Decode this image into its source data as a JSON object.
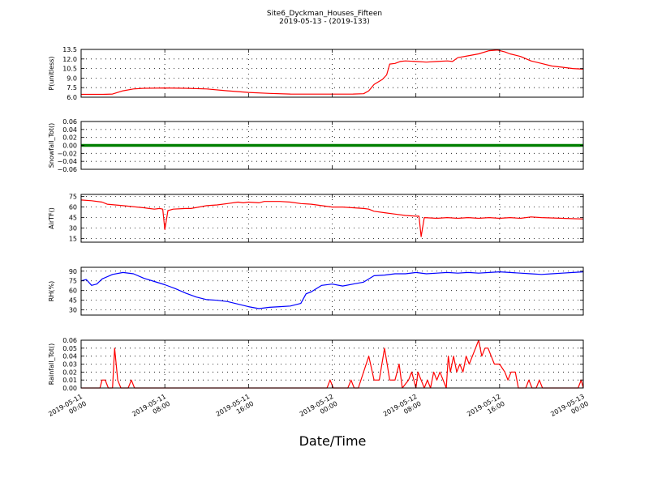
{
  "figure": {
    "title_line1": "Site6_Dyckman_Houses_Fifteen",
    "title_line2": "2019-05-13 - (2019-133)",
    "xlabel": "Date/Time",
    "x_ticks": [
      {
        "t": 0,
        "line1": "2019-05-11",
        "line2": "00:00"
      },
      {
        "t": 8,
        "line1": "2019-05-11",
        "line2": "08:00"
      },
      {
        "t": 16,
        "line1": "2019-05-11",
        "line2": "16:00"
      },
      {
        "t": 24,
        "line1": "2019-05-12",
        "line2": "00:00"
      },
      {
        "t": 32,
        "line1": "2019-05-12",
        "line2": "08:00"
      },
      {
        "t": 40,
        "line1": "2019-05-12",
        "line2": "16:00"
      },
      {
        "t": 48,
        "line1": "2019-05-13",
        "line2": "00:00"
      }
    ],
    "x_range_hours": [
      0,
      48
    ]
  },
  "chart_data": [
    {
      "type": "line",
      "ylabel": "P(unitless)",
      "color": "#ff0000",
      "ylim": [
        6.0,
        13.5
      ],
      "yticks": [
        6.0,
        7.5,
        9.0,
        10.5,
        12.0,
        13.5
      ],
      "ytick_labels": [
        "6.0",
        "7.5",
        "9.0",
        "10.5",
        "12.0",
        "13.5"
      ],
      "grid": true,
      "points": [
        [
          0,
          6.45
        ],
        [
          2,
          6.45
        ],
        [
          3,
          6.5
        ],
        [
          4,
          7.0
        ],
        [
          5,
          7.3
        ],
        [
          6,
          7.4
        ],
        [
          8,
          7.45
        ],
        [
          10,
          7.4
        ],
        [
          12,
          7.3
        ],
        [
          14,
          7.0
        ],
        [
          16,
          6.75
        ],
        [
          18,
          6.6
        ],
        [
          20,
          6.5
        ],
        [
          22,
          6.48
        ],
        [
          24,
          6.48
        ],
        [
          26,
          6.5
        ],
        [
          27,
          6.55
        ],
        [
          27.5,
          7.0
        ],
        [
          28,
          8.0
        ],
        [
          28.8,
          8.8
        ],
        [
          29.2,
          9.5
        ],
        [
          29.5,
          11.2
        ],
        [
          30,
          11.3
        ],
        [
          30.5,
          11.6
        ],
        [
          31,
          11.7
        ],
        [
          32,
          11.6
        ],
        [
          33,
          11.5
        ],
        [
          34,
          11.6
        ],
        [
          35,
          11.7
        ],
        [
          35.5,
          11.6
        ],
        [
          36,
          12.2
        ],
        [
          37,
          12.5
        ],
        [
          38,
          12.8
        ],
        [
          39,
          13.3
        ],
        [
          39.8,
          13.4
        ],
        [
          40.5,
          13.1
        ],
        [
          41,
          12.8
        ],
        [
          41.5,
          12.6
        ],
        [
          42,
          12.4
        ],
        [
          43,
          11.7
        ],
        [
          44,
          11.3
        ],
        [
          45,
          10.9
        ],
        [
          46,
          10.7
        ],
        [
          47,
          10.5
        ],
        [
          48,
          10.4
        ]
      ]
    },
    {
      "type": "line",
      "ylabel": "Snowfall_Tot()",
      "color": "#008000",
      "ylim": [
        -0.06,
        0.06
      ],
      "yticks": [
        -0.06,
        -0.04,
        -0.02,
        0.0,
        0.02,
        0.04,
        0.06
      ],
      "ytick_labels": [
        "−0.06",
        "−0.04",
        "−0.02",
        "0.00",
        "0.02",
        "0.04",
        "0.06"
      ],
      "grid": true,
      "points": [
        [
          0,
          0
        ],
        [
          48,
          0
        ]
      ]
    },
    {
      "type": "line",
      "ylabel": "AirTF()",
      "color": "#ff0000",
      "ylim": [
        10,
        78
      ],
      "yticks": [
        15,
        30,
        45,
        60,
        75
      ],
      "ytick_labels": [
        "15",
        "30",
        "45",
        "60",
        "75"
      ],
      "grid": true,
      "points": [
        [
          0,
          70
        ],
        [
          1,
          69
        ],
        [
          2,
          67
        ],
        [
          2.5,
          64
        ],
        [
          4,
          62
        ],
        [
          6,
          59
        ],
        [
          6.5,
          58
        ],
        [
          7,
          57
        ],
        [
          7.5,
          58
        ],
        [
          7.8,
          57
        ],
        [
          8,
          28
        ],
        [
          8.3,
          55
        ],
        [
          8.8,
          57
        ],
        [
          10,
          58
        ],
        [
          10.5,
          58
        ],
        [
          12,
          62
        ],
        [
          13,
          63
        ],
        [
          14,
          65
        ],
        [
          15,
          67
        ],
        [
          15.5,
          66
        ],
        [
          16,
          67
        ],
        [
          17,
          66
        ],
        [
          17.5,
          68
        ],
        [
          19,
          68
        ],
        [
          20,
          67
        ],
        [
          21,
          65
        ],
        [
          22,
          64
        ],
        [
          23,
          62
        ],
        [
          24,
          60
        ],
        [
          25,
          60
        ],
        [
          26,
          59
        ],
        [
          27,
          58
        ],
        [
          27.5,
          57
        ],
        [
          28,
          54
        ],
        [
          29,
          52
        ],
        [
          30,
          50
        ],
        [
          31,
          48
        ],
        [
          32,
          47
        ],
        [
          32.3,
          47
        ],
        [
          32.5,
          18
        ],
        [
          32.8,
          45
        ],
        [
          34,
          44
        ],
        [
          35,
          45
        ],
        [
          36,
          44
        ],
        [
          37,
          45
        ],
        [
          38,
          44
        ],
        [
          39,
          45
        ],
        [
          40,
          44
        ],
        [
          41,
          45
        ],
        [
          42,
          44
        ],
        [
          43,
          46
        ],
        [
          44,
          45
        ],
        [
          46,
          44
        ],
        [
          48,
          43
        ]
      ]
    },
    {
      "type": "line",
      "ylabel": "RH(%)",
      "color": "#0000ff",
      "ylim": [
        22,
        96
      ],
      "yticks": [
        30,
        45,
        60,
        75,
        90
      ],
      "ytick_labels": [
        "30",
        "45",
        "60",
        "75",
        "90"
      ],
      "grid": true,
      "points": [
        [
          0,
          75
        ],
        [
          0.5,
          77
        ],
        [
          1,
          68
        ],
        [
          1.5,
          70
        ],
        [
          2,
          78
        ],
        [
          3,
          85
        ],
        [
          4,
          88
        ],
        [
          5,
          86
        ],
        [
          6,
          79
        ],
        [
          7,
          74
        ],
        [
          8,
          69
        ],
        [
          9,
          63
        ],
        [
          10,
          56
        ],
        [
          11,
          50
        ],
        [
          12,
          46
        ],
        [
          13,
          45
        ],
        [
          14,
          43
        ],
        [
          15,
          39
        ],
        [
          16,
          35
        ],
        [
          17,
          32
        ],
        [
          18,
          34
        ],
        [
          19,
          35
        ],
        [
          20,
          36
        ],
        [
          21,
          40
        ],
        [
          21.5,
          55
        ],
        [
          22,
          58
        ],
        [
          23,
          68
        ],
        [
          24,
          70
        ],
        [
          25,
          67
        ],
        [
          26,
          70
        ],
        [
          27,
          73
        ],
        [
          28,
          83
        ],
        [
          29,
          84
        ],
        [
          30,
          86
        ],
        [
          31,
          86
        ],
        [
          32,
          88
        ],
        [
          33,
          86
        ],
        [
          34,
          87
        ],
        [
          35,
          88
        ],
        [
          36,
          87
        ],
        [
          37,
          88
        ],
        [
          38,
          87
        ],
        [
          39,
          88
        ],
        [
          40,
          89
        ],
        [
          41,
          88
        ],
        [
          42,
          87
        ],
        [
          43,
          86
        ],
        [
          44,
          85
        ],
        [
          45,
          86
        ],
        [
          46,
          87
        ],
        [
          47,
          88
        ],
        [
          48,
          89
        ]
      ]
    },
    {
      "type": "line",
      "ylabel": "Rainfall_Tot()",
      "color": "#ff0000",
      "ylim": [
        0.0,
        0.06
      ],
      "yticks": [
        0.0,
        0.01,
        0.02,
        0.03,
        0.04,
        0.05,
        0.06
      ],
      "ytick_labels": [
        "0.00",
        "0.01",
        "0.02",
        "0.03",
        "0.04",
        "0.05",
        "0.06"
      ],
      "grid": true,
      "points": [
        [
          0,
          0
        ],
        [
          1.8,
          0
        ],
        [
          2,
          0.01
        ],
        [
          2.3,
          0.01
        ],
        [
          2.6,
          0
        ],
        [
          3,
          0
        ],
        [
          3.2,
          0.05
        ],
        [
          3.5,
          0.01
        ],
        [
          3.8,
          0
        ],
        [
          4.5,
          0
        ],
        [
          4.8,
          0.01
        ],
        [
          5.1,
          0
        ],
        [
          23.5,
          0
        ],
        [
          23.8,
          0.01
        ],
        [
          24.1,
          0
        ],
        [
          25.5,
          0
        ],
        [
          25.8,
          0.01
        ],
        [
          26.1,
          0
        ],
        [
          26.5,
          0
        ],
        [
          27.5,
          0.04
        ],
        [
          28,
          0.01
        ],
        [
          28.5,
          0.01
        ],
        [
          29,
          0.05
        ],
        [
          29.5,
          0.01
        ],
        [
          30,
          0.01
        ],
        [
          30.4,
          0.03
        ],
        [
          30.7,
          0
        ],
        [
          31.3,
          0.01
        ],
        [
          31.6,
          0.02
        ],
        [
          32,
          0
        ],
        [
          32.2,
          0.02
        ],
        [
          32.5,
          0.01
        ],
        [
          32.8,
          0
        ],
        [
          33.1,
          0.01
        ],
        [
          33.4,
          0
        ],
        [
          33.7,
          0.02
        ],
        [
          34,
          0.01
        ],
        [
          34.3,
          0.02
        ],
        [
          34.6,
          0.01
        ],
        [
          34.9,
          0
        ],
        [
          35.1,
          0.04
        ],
        [
          35.3,
          0.02
        ],
        [
          35.6,
          0.04
        ],
        [
          35.9,
          0.02
        ],
        [
          36.2,
          0.03
        ],
        [
          36.5,
          0.02
        ],
        [
          36.8,
          0.04
        ],
        [
          37.1,
          0.03
        ],
        [
          37.4,
          0.04
        ],
        [
          37.7,
          0.05
        ],
        [
          38,
          0.06
        ],
        [
          38.3,
          0.04
        ],
        [
          38.6,
          0.05
        ],
        [
          38.9,
          0.05
        ],
        [
          39.2,
          0.04
        ],
        [
          39.5,
          0.03
        ],
        [
          40,
          0.03
        ],
        [
          40.5,
          0.02
        ],
        [
          40.8,
          0.01
        ],
        [
          41.1,
          0.02
        ],
        [
          41.5,
          0.02
        ],
        [
          41.8,
          0
        ],
        [
          42.5,
          0
        ],
        [
          42.8,
          0.01
        ],
        [
          43.1,
          0
        ],
        [
          43.5,
          0
        ],
        [
          43.8,
          0.01
        ],
        [
          44.1,
          0
        ],
        [
          47.5,
          0
        ],
        [
          47.8,
          0.01
        ],
        [
          48,
          0
        ]
      ]
    }
  ]
}
